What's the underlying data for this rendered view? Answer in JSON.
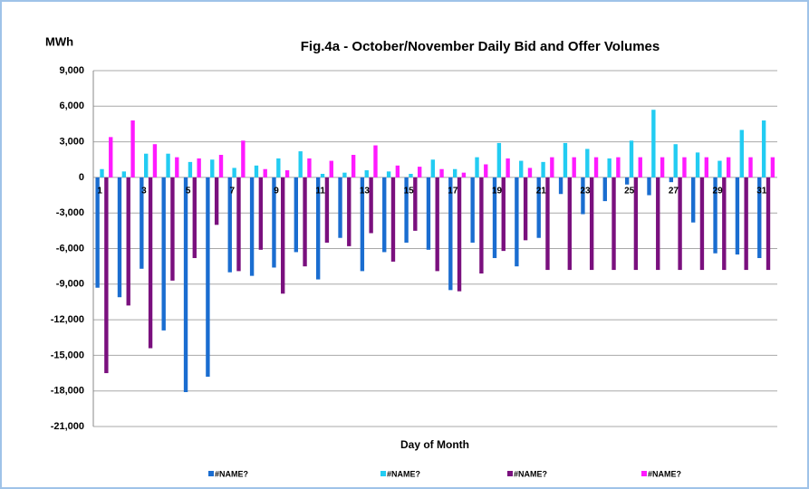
{
  "chart_data": {
    "type": "bar",
    "title": "Fig.4a - October/November Daily Bid and Offer Volumes",
    "y_label": "MWh",
    "x_label": "Day of Month",
    "categories": [
      "1",
      null,
      "3",
      null,
      "5",
      null,
      "7",
      null,
      "9",
      null,
      "11",
      null,
      "13",
      null,
      "15",
      null,
      "17",
      null,
      "19",
      null,
      "21",
      null,
      "23",
      null,
      "25",
      null,
      "27",
      null,
      "29",
      null,
      "31"
    ],
    "series": [
      {
        "name": "#NAME?",
        "color": "#1a6dd0",
        "values": [
          -9300,
          -10100,
          -7700,
          -12900,
          -18100,
          -16800,
          -8000,
          -8300,
          -7600,
          -6300,
          -8600,
          -5100,
          -7900,
          -6300,
          -5500,
          -6100,
          -9500,
          -5500,
          -6800,
          -7500,
          -5100,
          -1400,
          -3100,
          -2000,
          -600,
          -1500,
          -400,
          -3800,
          -6400,
          -6500,
          -6800
        ]
      },
      {
        "name": "#NAME?",
        "color": "#22ccf2",
        "values": [
          700,
          500,
          2000,
          2000,
          1300,
          1500,
          800,
          1000,
          1600,
          2200,
          300,
          400,
          600,
          500,
          300,
          1500,
          700,
          1700,
          2900,
          1400,
          1300,
          2900,
          2400,
          1600,
          3100,
          5700,
          2800,
          2100,
          1400,
          4000,
          4800
        ]
      },
      {
        "name": "#NAME?",
        "color": "#7a107e",
        "values": [
          -16500,
          -10800,
          -14400,
          -8700,
          -6800,
          -4000,
          -7900,
          -6100,
          -9800,
          -7500,
          -5500,
          -5800,
          -4700,
          -7100,
          -4500,
          -7900,
          -9600,
          -8100,
          -6200,
          -5300,
          -7800,
          -7800,
          -7800,
          -7800,
          -7800,
          -7800,
          -7800,
          -7800,
          -7800,
          -7800,
          -7800
        ]
      },
      {
        "name": "#NAME?",
        "color": "#ff1aff",
        "values": [
          3400,
          4800,
          2800,
          1700,
          1600,
          1900,
          3100,
          700,
          600,
          1600,
          1400,
          1900,
          2700,
          1000,
          900,
          700,
          400,
          1100,
          1600,
          800,
          1700,
          1700,
          1700,
          1700,
          1700,
          1700,
          1700,
          1700,
          1700,
          1700,
          1700
        ]
      }
    ],
    "ylim": [
      -21000,
      9000
    ],
    "yticks": [
      {
        "value": -21000,
        "label": "-21,000"
      },
      {
        "value": -18000,
        "label": "-18,000"
      },
      {
        "value": -15000,
        "label": "-15,000"
      },
      {
        "value": -12000,
        "label": "-12,000"
      },
      {
        "value": -9000,
        "label": "-9,000"
      },
      {
        "value": -6000,
        "label": "-6,000"
      },
      {
        "value": -3000,
        "label": "-3,000"
      },
      0,
      {
        "value": 3000,
        "label": "3,000"
      },
      {
        "value": 6000,
        "label": "6,000"
      },
      {
        "value": 9000,
        "label": "9,000"
      }
    ],
    "grid": true
  }
}
